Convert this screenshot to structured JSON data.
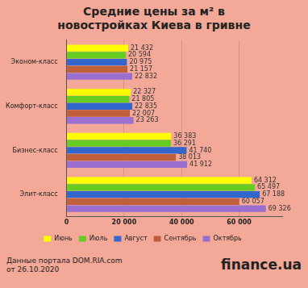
{
  "chart_data": {
    "type": "bar",
    "title": "Средние цены за м² в новостройках Киева в гривне",
    "orientation": "horizontal",
    "categories": [
      "Эконом-класс",
      "Комфорт-класс",
      "Бизнес-класс",
      "Элит-класс"
    ],
    "series": [
      {
        "name": "Июнь",
        "color": "#ffff00",
        "values": [
          21432,
          22327,
          36383,
          64312
        ],
        "value_labels": [
          "21 432",
          "22 327",
          "36 383",
          "64 312"
        ]
      },
      {
        "name": "Июль",
        "color": "#66cc22",
        "values": [
          20594,
          21805,
          36291,
          65497
        ],
        "value_labels": [
          "20 594",
          "21 805",
          "36 291",
          "65 497"
        ]
      },
      {
        "name": "Август",
        "color": "#3366cc",
        "values": [
          20975,
          22835,
          41740,
          67188
        ],
        "value_labels": [
          "20 975",
          "22 835",
          "41 740",
          "67 188"
        ]
      },
      {
        "name": "Сентябрь",
        "color": "#c0603a",
        "values": [
          21157,
          22007,
          38013,
          60057
        ],
        "value_labels": [
          "21 157",
          "22 007",
          "38 013",
          "60 057"
        ]
      },
      {
        "name": "Октябрь",
        "color": "#9b6fd0",
        "values": [
          22832,
          23263,
          41912,
          69326
        ],
        "value_labels": [
          "22 832",
          "23 263",
          "41 912",
          "69 326"
        ]
      }
    ],
    "xlim": [
      0,
      75000
    ],
    "xticks": [
      0,
      {
        "value": 20000,
        "label": "20 000"
      },
      {
        "value": 40000,
        "label": "40 000"
      },
      {
        "value": 60000,
        "label": "60 000"
      }
    ],
    "grid": true,
    "legend": "bottom",
    "data_labels": true,
    "annotations": [
      "Данные портала DOM.RIA.com",
      "от 26.10.2020",
      "finance.ua"
    ]
  }
}
